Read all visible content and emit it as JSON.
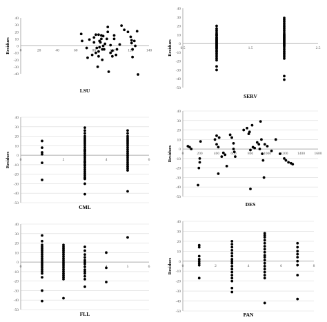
{
  "chart_data": [
    {
      "type": "scatter",
      "xlabel": "LSU",
      "ylabel": "Residues",
      "xlim": [
        0,
        140
      ],
      "ylim": [
        -40,
        40
      ],
      "xticks": [
        0,
        20,
        40,
        60,
        80,
        100,
        120,
        140
      ],
      "yticks": [
        40,
        30,
        20,
        10,
        0,
        -10,
        -20,
        -30,
        -40
      ],
      "grid": false,
      "x": [
        66,
        67,
        72,
        73,
        75,
        78,
        80,
        80,
        82,
        82,
        83,
        84,
        85,
        85,
        85,
        86,
        86,
        87,
        88,
        88,
        89,
        89,
        90,
        90,
        91,
        92,
        94,
        95,
        95,
        96,
        98,
        98,
        100,
        100,
        102,
        102,
        104,
        105,
        108,
        110,
        113,
        117,
        120,
        121,
        121,
        122,
        122,
        124,
        125,
        127,
        128
      ],
      "y": [
        17,
        7,
        -3,
        -17,
        9,
        -13,
        5,
        12,
        16,
        -10,
        -3,
        -30,
        16,
        -15,
        -8,
        -2,
        7,
        5,
        15,
        10,
        -5,
        -20,
        14,
        0,
        -5,
        3,
        10,
        27,
        20,
        -37,
        1,
        -10,
        -7,
        -15,
        15,
        10,
        -13,
        -5,
        2,
        29,
        23,
        20,
        13,
        8,
        4,
        -5,
        -16,
        7,
        0,
        21,
        -41
      ]
    },
    {
      "type": "scatter",
      "xlabel": "SERV",
      "ylabel": "Residues",
      "xlim": [
        0.5,
        2.5
      ],
      "ylim": [
        -50,
        40
      ],
      "xticks": [
        0.5,
        1,
        1.5,
        2,
        2.5
      ],
      "yticks": [
        40,
        30,
        20,
        10,
        0,
        -10,
        -20,
        -30,
        -40,
        -50
      ],
      "grid": false,
      "x": [
        1,
        1,
        1,
        1,
        1,
        1,
        1,
        1,
        1,
        1,
        1,
        1,
        1,
        1,
        1,
        1,
        1,
        1,
        1,
        1,
        1,
        1,
        1,
        1,
        1,
        1,
        1,
        1,
        1,
        1,
        2,
        2,
        2,
        2,
        2,
        2,
        2,
        2,
        2,
        2,
        2,
        2,
        2,
        2,
        2,
        2,
        2,
        2,
        2,
        2,
        2,
        2,
        2,
        2,
        2,
        2,
        2,
        2,
        2,
        2,
        2,
        2,
        2
      ],
      "y": [
        20,
        17,
        15,
        13,
        11,
        9,
        7,
        5,
        4,
        3,
        1,
        0,
        -1,
        -2,
        -4,
        -5,
        -6,
        -8,
        -9,
        -11,
        -13,
        -15,
        -17,
        -19,
        -26,
        -30,
        2,
        6,
        10,
        -3,
        29,
        27,
        25,
        23,
        21,
        19,
        17,
        15,
        13,
        11,
        10,
        9,
        8,
        7,
        6,
        5,
        4,
        3,
        2,
        1,
        0,
        -1,
        -2,
        -3,
        -5,
        -7,
        -9,
        -11,
        -13,
        -15,
        -17,
        -37,
        -41
      ]
    },
    {
      "type": "scatter",
      "xlabel": "CML",
      "ylabel": "Residues",
      "xlim": [
        0,
        6
      ],
      "ylim": [
        -50,
        40
      ],
      "xticks": [
        0,
        2,
        4,
        6
      ],
      "yticks": [
        40,
        30,
        20,
        10,
        0,
        -10,
        -20,
        -30,
        -40,
        -50
      ],
      "grid": true,
      "x": [
        1,
        1,
        1,
        1,
        1,
        1,
        3,
        3,
        3,
        3,
        3,
        3,
        3,
        3,
        3,
        3,
        3,
        3,
        3,
        3,
        3,
        3,
        3,
        3,
        3,
        3,
        3,
        3,
        3,
        3,
        3,
        3,
        3,
        3,
        3,
        3,
        3,
        3,
        5,
        5,
        5,
        5,
        5,
        5,
        5,
        5,
        5,
        5,
        5,
        5,
        5,
        5,
        5,
        5,
        5,
        5,
        5,
        5,
        5,
        5
      ],
      "y": [
        15,
        8,
        3,
        1,
        -8,
        -26,
        29,
        26,
        23,
        20,
        18,
        16,
        14,
        12,
        10,
        8,
        6,
        4,
        2,
        0,
        -2,
        -4,
        -6,
        -8,
        -10,
        -11,
        -13,
        -15,
        -17,
        -19,
        -21,
        -23,
        -25,
        -30,
        -41,
        -24,
        5,
        -7,
        26,
        23,
        20,
        18,
        16,
        14,
        12,
        10,
        8,
        6,
        4,
        2,
        0,
        -2,
        -4,
        -6,
        -8,
        -10,
        -12,
        -14,
        -16,
        -38
      ]
    },
    {
      "type": "scatter",
      "xlabel": "DES",
      "ylabel": "Residues",
      "xlim": [
        0,
        1600
      ],
      "ylim": [
        -50,
        40
      ],
      "xticks": [
        0,
        200,
        400,
        600,
        800,
        1000,
        1200,
        1400,
        1600
      ],
      "yticks": [
        40,
        30,
        20,
        10,
        0,
        -10,
        -20,
        -30,
        -40,
        -50
      ],
      "grid": true,
      "x": [
        60,
        80,
        100,
        180,
        190,
        200,
        200,
        210,
        380,
        400,
        400,
        420,
        420,
        430,
        460,
        480,
        500,
        520,
        560,
        580,
        600,
        600,
        610,
        620,
        720,
        760,
        780,
        790,
        800,
        800,
        820,
        830,
        850,
        880,
        900,
        910,
        920,
        930,
        940,
        950,
        960,
        970,
        1000,
        1050,
        1100,
        1150,
        1200,
        1220,
        1250,
        1280,
        1300
      ],
      "y": [
        3,
        2,
        0,
        -38,
        -20,
        -14,
        -10,
        8,
        10,
        14,
        5,
        2,
        -26,
        12,
        -8,
        -4,
        -6,
        -18,
        15,
        12,
        6,
        0,
        -3,
        -8,
        20,
        22,
        16,
        18,
        -1,
        -42,
        25,
        2,
        1,
        7,
        5,
        0,
        29,
        10,
        -5,
        -12,
        -30,
        5,
        3,
        -2,
        10,
        -5,
        -10,
        -12,
        -14,
        -15,
        -16
      ]
    },
    {
      "type": "scatter",
      "xlabel": "FLL",
      "ylabel": "",
      "xlim": [
        0,
        6
      ],
      "ylim": [
        -50,
        40
      ],
      "xticks": [
        0,
        1,
        2,
        3,
        4,
        5,
        6
      ],
      "yticks": [
        40,
        30,
        20,
        10,
        0,
        -10,
        -20,
        -30,
        -40,
        -50
      ],
      "grid": true,
      "x": [
        1,
        1,
        1,
        1,
        1,
        1,
        1,
        1,
        1,
        1,
        1,
        1,
        1,
        1,
        1,
        1,
        1,
        1,
        1,
        1,
        1,
        2,
        2,
        2,
        2,
        2,
        2,
        2,
        2,
        2,
        2,
        2,
        2,
        2,
        2,
        2,
        2,
        2,
        2,
        2,
        2,
        3,
        3,
        3,
        3,
        3,
        3,
        3,
        3,
        3,
        3,
        3,
        3,
        3,
        3,
        4,
        4,
        4,
        5
      ],
      "y": [
        28,
        22,
        18,
        16,
        14,
        12,
        10,
        8,
        6,
        4,
        2,
        0,
        -2,
        -4,
        -6,
        -8,
        -10,
        -12,
        -16,
        -30,
        -41,
        18,
        16,
        14,
        12,
        10,
        8,
        6,
        4,
        2,
        0,
        -2,
        -4,
        -6,
        -8,
        -10,
        -12,
        -14,
        -16,
        -38,
        -18,
        16,
        12,
        8,
        5,
        2,
        0,
        -2,
        -5,
        -8,
        -10,
        -12,
        -15,
        -18,
        -26,
        10,
        -6,
        -21,
        26
      ]
    },
    {
      "type": "scatter",
      "xlabel": "PAN",
      "ylabel": "Residues",
      "xlim": [
        0,
        8
      ],
      "ylim": [
        -50,
        40
      ],
      "xticks": [
        0,
        1,
        2,
        3,
        4,
        5,
        6,
        7,
        8
      ],
      "yticks": [
        40,
        30,
        20,
        10,
        0,
        -10,
        -20,
        -30,
        -40,
        -50
      ],
      "grid": true,
      "x": [
        1,
        1,
        1,
        1,
        1,
        1,
        1,
        1,
        3,
        3,
        3,
        3,
        3,
        3,
        3,
        3,
        3,
        3,
        3,
        3,
        3,
        3,
        3,
        3,
        3,
        5,
        5,
        5,
        5,
        5,
        5,
        5,
        5,
        5,
        5,
        5,
        5,
        5,
        5,
        5,
        5,
        5,
        5,
        7,
        7,
        7,
        7,
        7,
        7,
        7,
        7,
        7
      ],
      "y": [
        16,
        14,
        5,
        2,
        0,
        -2,
        -4,
        -17,
        20,
        17,
        14,
        11,
        8,
        5,
        2,
        0,
        -2,
        -5,
        -8,
        -11,
        -14,
        -17,
        -20,
        -27,
        -31,
        28,
        26,
        24,
        21,
        18,
        15,
        12,
        9,
        6,
        4,
        1,
        -2,
        -5,
        -8,
        -11,
        -14,
        -17,
        -42,
        18,
        14,
        10,
        7,
        4,
        0,
        -4,
        -14,
        -38
      ]
    }
  ]
}
